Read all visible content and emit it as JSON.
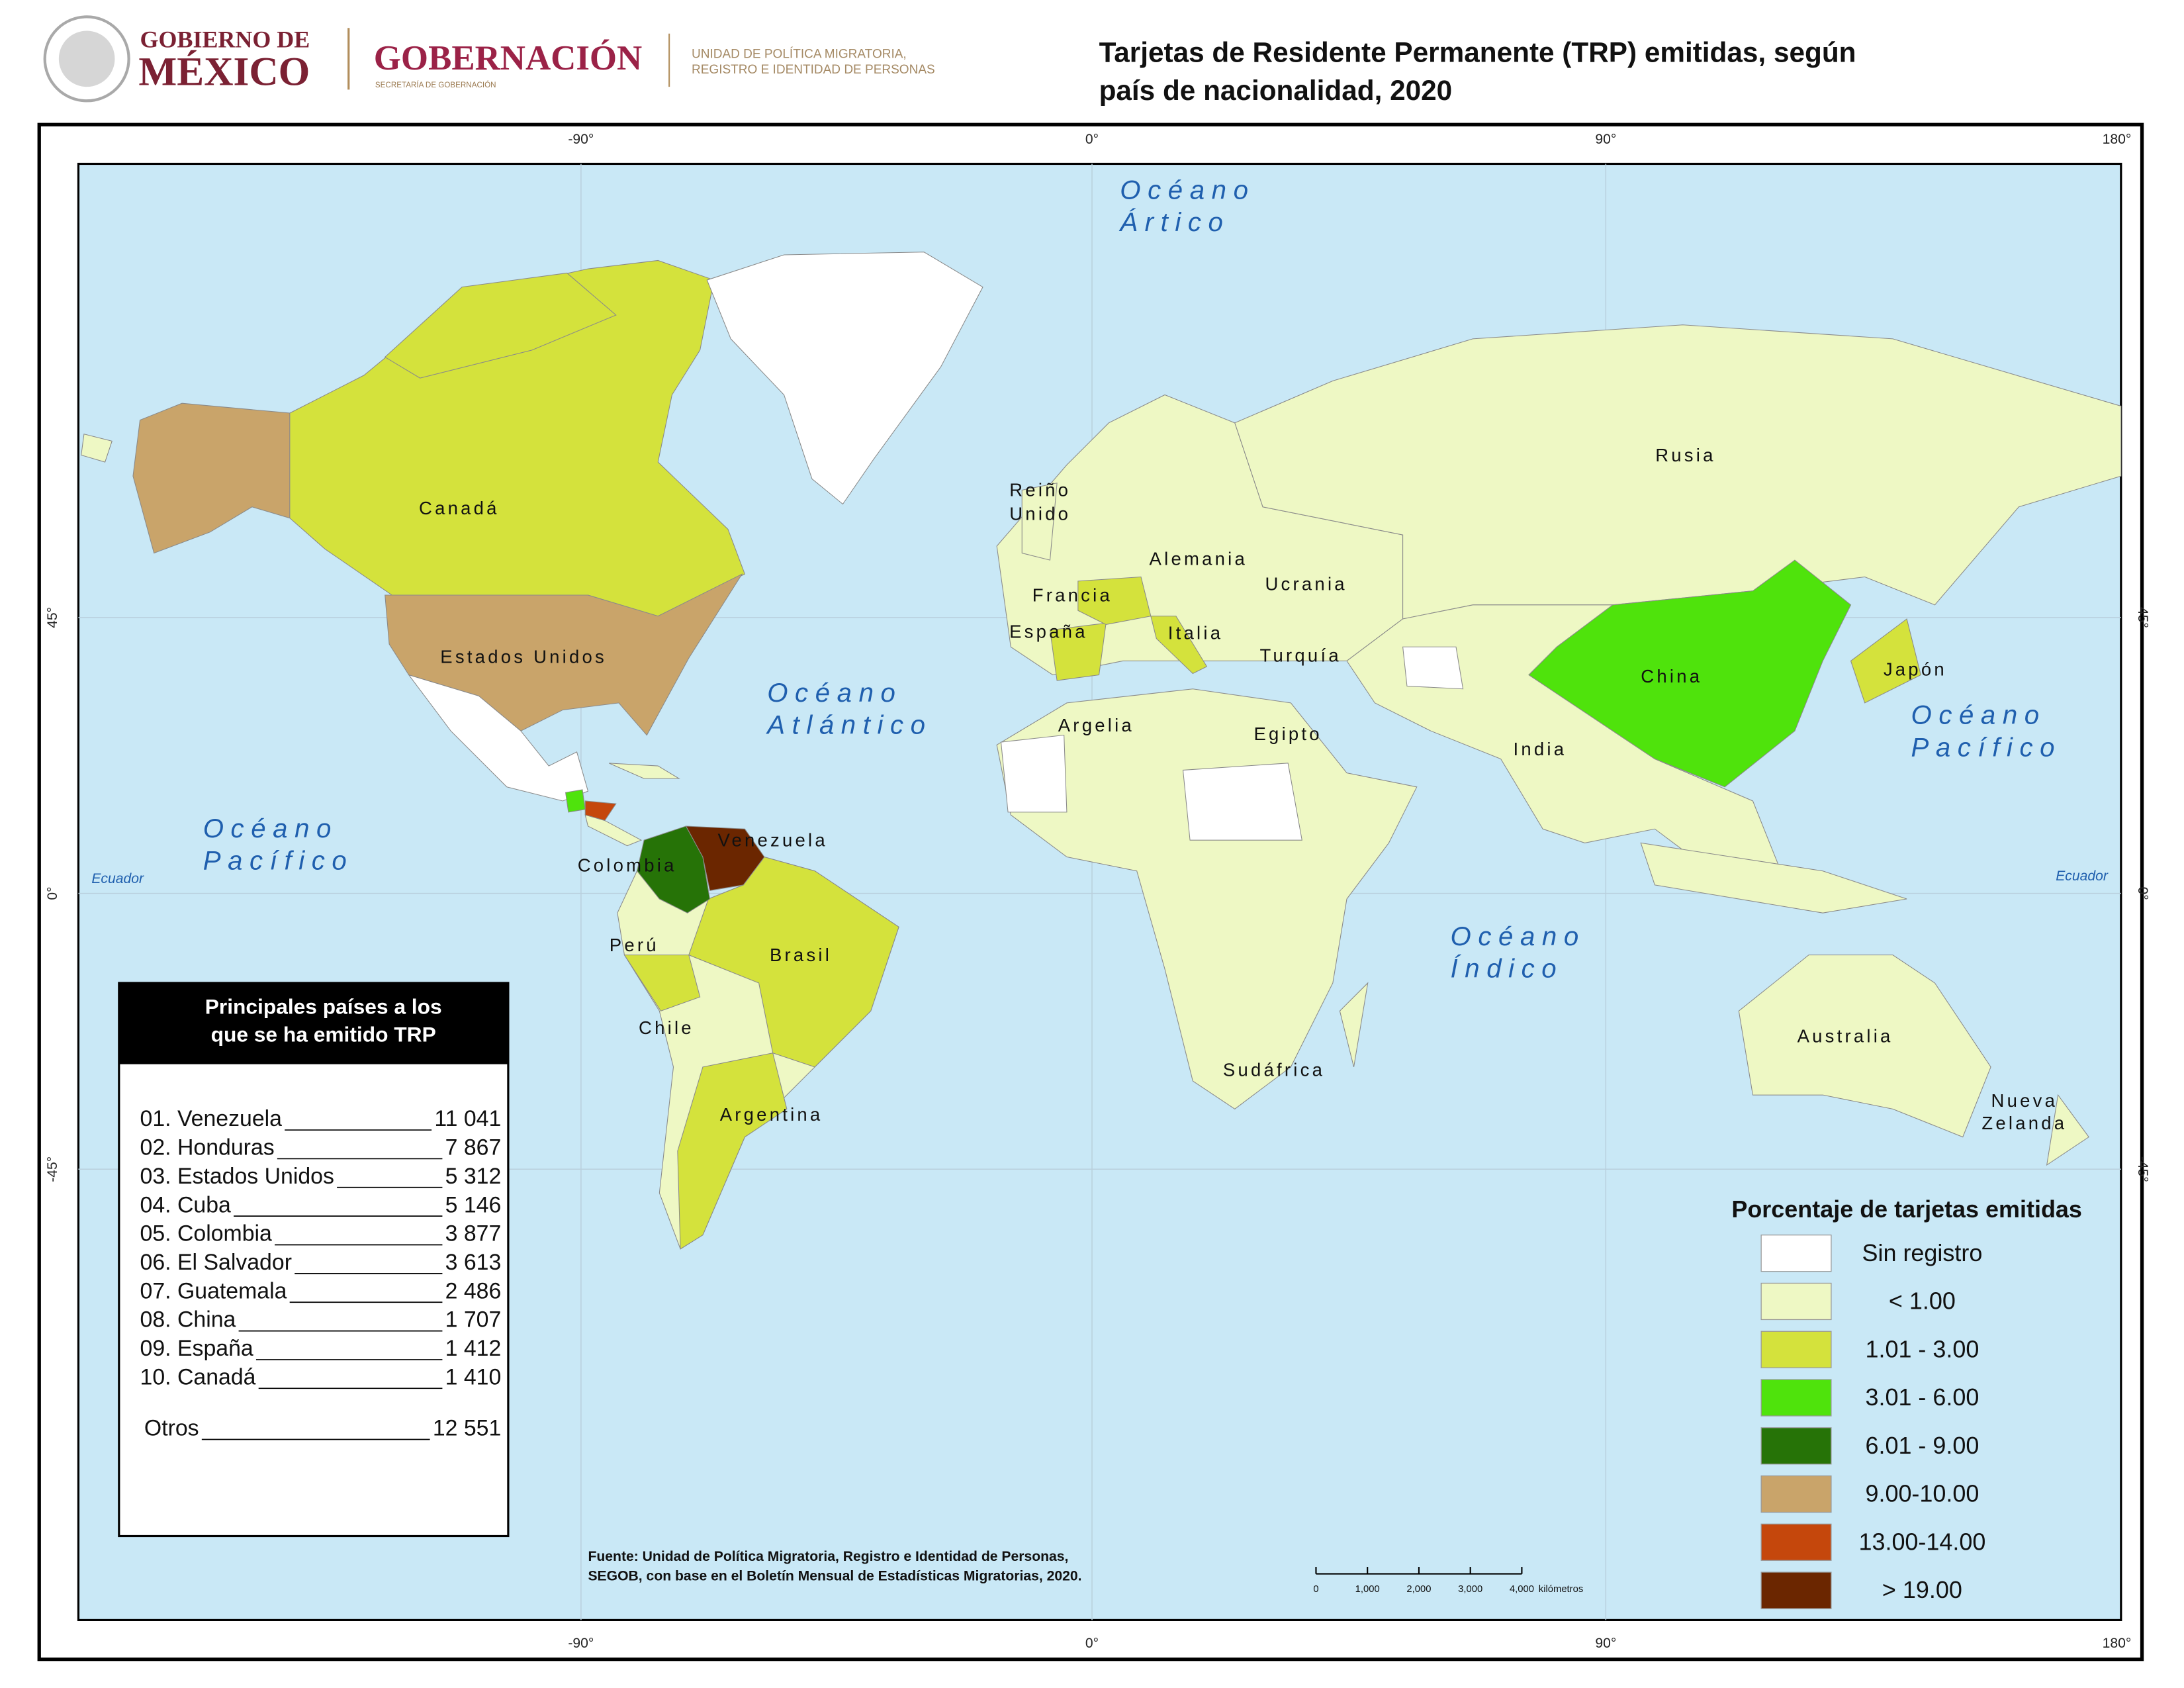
{
  "header": {
    "gov_line1": "GOBIERNO DE",
    "gov_line2": "MÉXICO",
    "ministry": "GOBERNACIÓN",
    "ministry_sub": "SECRETARÍA DE GOBERNACIÓN",
    "unit_line1": "UNIDAD DE POLÍTICA MIGRATORIA,",
    "unit_line2": "REGISTRO E IDENTIDAD DE PERSONAS"
  },
  "title": [
    "Tarjetas de Residente Permanente (TRP) emitidas, según",
    "país de nacionalidad, 2020"
  ],
  "graticule": {
    "longitudes": [
      "-90°",
      "0°",
      "90°",
      "180°"
    ],
    "latitudes": [
      "45°",
      "0°",
      "-45°"
    ],
    "equator": "Ecuador"
  },
  "oceans": [
    [
      "Océano",
      "Ártico"
    ],
    [
      "Océano",
      "Atlántico"
    ],
    [
      "Océano",
      "Pacífico"
    ],
    [
      "Océano",
      "Pacífico"
    ],
    [
      "Océano",
      "Índico"
    ]
  ],
  "country_labels": [
    "Canadá",
    "Estados Unidos",
    "Venezuela",
    "Colombia",
    "Perú",
    "Brasil",
    "Chile",
    "Argentina",
    "Reiño",
    "Unido",
    "Francia",
    "España",
    "Alemania",
    "Italia",
    "Ucrania",
    "Turquía",
    "Argelia",
    "Egipto",
    "Rusia",
    "China",
    "India",
    "Japón",
    "Sudáfrica",
    "Australia",
    "Nueva",
    "Zelanda"
  ],
  "table": {
    "title": [
      "Principales países a los",
      "que se ha emitido TRP"
    ],
    "rows": [
      [
        "01. Venezuela",
        "11 041"
      ],
      [
        "02. Honduras",
        "7 867"
      ],
      [
        "03. Estados Unidos",
        "5 312"
      ],
      [
        "04. Cuba",
        "5 146"
      ],
      [
        "05. Colombia",
        "3 877"
      ],
      [
        "06. El Salvador",
        "3 613"
      ],
      [
        "07. Guatemala",
        "2 486"
      ],
      [
        "08. China",
        "1 707"
      ],
      [
        "09. España",
        "1 412"
      ],
      [
        "10. Canadá",
        "1 410"
      ]
    ],
    "other": [
      "Otros",
      "12 551"
    ]
  },
  "legend": {
    "title": "Porcentaje de tarjetas emitidas",
    "items": [
      {
        "label": "Sin registro",
        "color": "#ffffff"
      },
      {
        "label": "<     1.00",
        "color": "#eef8c4"
      },
      {
        "label": "1.01 - 3.00",
        "color": "#d4e23c"
      },
      {
        "label": "3.01 - 6.00",
        "color": "#4fe30c"
      },
      {
        "label": "6.01 - 9.00",
        "color": "#267307"
      },
      {
        "label": "9.00-10.00",
        "color": "#c9a46a"
      },
      {
        "label": "13.00-14.00",
        "color": "#c5470c"
      },
      {
        "label": ">     19.00",
        "color": "#6b2600"
      }
    ]
  },
  "source": [
    "Fuente: Unidad de Política Migratoria, Registro e Identidad de Personas,",
    "SEGOB, con base en el Boletín Mensual de Estadísticas Migratorias, 2020."
  ],
  "scale": {
    "ticks": [
      "0",
      "1,000",
      "2,000",
      "3,000",
      "4,000"
    ],
    "unit": "kilómetros"
  }
}
